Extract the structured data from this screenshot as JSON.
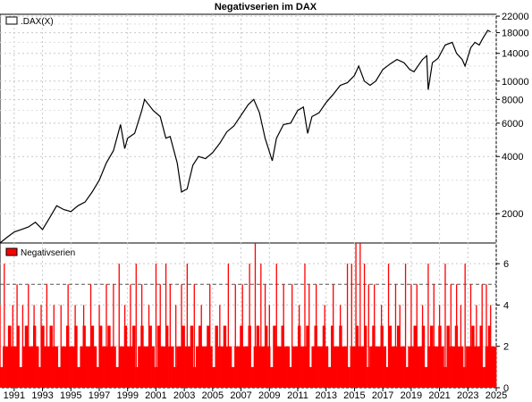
{
  "chart_data": [
    {
      "type": "line",
      "title": "Negativserien im DAX",
      "legend": ".DAX(X)",
      "legend_position": "top-left",
      "y_scale": "log",
      "ylim": [
        1400,
        22500
      ],
      "xlim": [
        1990.0,
        2025.0
      ],
      "y_ticks": [
        "2000",
        "4000",
        "6000",
        "8000",
        "10000",
        "14000",
        "18000",
        "22000"
      ],
      "grid": true,
      "series": [
        {
          "name": ".DAX(X)",
          "x": [
            1990.0,
            1990.5,
            1991.0,
            1991.5,
            1992.0,
            1992.5,
            1993.0,
            1993.5,
            1994.0,
            1994.5,
            1995.0,
            1995.5,
            1996.0,
            1996.5,
            1997.0,
            1997.5,
            1998.0,
            1998.5,
            1998.8,
            1999.0,
            1999.5,
            2000.0,
            2000.2,
            2000.8,
            2001.3,
            2001.7,
            2002.0,
            2002.5,
            2002.8,
            2003.2,
            2003.6,
            2004.0,
            2004.5,
            2005.0,
            2005.5,
            2006.0,
            2006.5,
            2007.0,
            2007.5,
            2007.9,
            2008.3,
            2008.7,
            2009.2,
            2009.5,
            2010.0,
            2010.5,
            2011.0,
            2011.4,
            2011.7,
            2012.0,
            2012.5,
            2013.0,
            2013.5,
            2014.0,
            2014.5,
            2015.0,
            2015.3,
            2015.7,
            2016.1,
            2016.5,
            2017.0,
            2017.5,
            2018.0,
            2018.5,
            2018.9,
            2019.2,
            2019.8,
            2020.1,
            2020.2,
            2020.5,
            2020.9,
            2021.4,
            2021.9,
            2022.2,
            2022.6,
            2022.8,
            2023.2,
            2023.5,
            2023.8,
            2024.0,
            2024.2,
            2024.4,
            2024.6
          ],
          "values": [
            1400,
            1500,
            1600,
            1650,
            1700,
            1800,
            1650,
            1900,
            2200,
            2100,
            2050,
            2200,
            2300,
            2600,
            3000,
            3700,
            4300,
            5900,
            4400,
            5000,
            5300,
            7000,
            8000,
            7000,
            6500,
            5000,
            5100,
            3700,
            2600,
            2700,
            3600,
            4000,
            3900,
            4200,
            4700,
            5400,
            5800,
            6600,
            7500,
            8000,
            6800,
            5000,
            3800,
            5000,
            5900,
            6000,
            7000,
            7300,
            5300,
            6500,
            6800,
            7700,
            8500,
            9500,
            9800,
            10700,
            12000,
            10000,
            9500,
            10000,
            11500,
            12300,
            13000,
            12500,
            11500,
            11200,
            13000,
            13600,
            9000,
            12500,
            13200,
            15500,
            16000,
            14000,
            13000,
            12000,
            15000,
            16000,
            15500,
            16500,
            17500,
            18500,
            18200
          ]
        }
      ]
    },
    {
      "type": "bar",
      "legend": "Negativserien",
      "legend_position": "top-left",
      "ylim": [
        0,
        7
      ],
      "y_ticks": [
        "0",
        "2",
        "4",
        "6"
      ],
      "x_ticks": [
        "1991",
        "1993",
        "1995",
        "1997",
        "1999",
        "2001",
        "2003",
        "2005",
        "2007",
        "2009",
        "2011",
        "2013",
        "2015",
        "2017",
        "2019",
        "2021",
        "2023",
        "2025"
      ],
      "reference_line": 5,
      "grid": true,
      "series": [
        {
          "name": "Negativserien",
          "color": "#ff0000",
          "x": [
            1990.0,
            1990.3,
            1990.6,
            1990.9,
            1991.2,
            1991.6,
            1992.0,
            1992.4,
            1992.9,
            1993.3,
            1993.8,
            1994.3,
            1994.8,
            1995.3,
            1995.9,
            1996.4,
            1997.0,
            1997.5,
            1998.0,
            1998.4,
            1998.8,
            1999.2,
            1999.6,
            2000.0,
            2000.5,
            2001.0,
            2001.3,
            2001.7,
            2002.0,
            2002.4,
            2002.8,
            2003.2,
            2003.7,
            2004.2,
            2004.8,
            2005.5,
            2006.1,
            2006.6,
            2007.1,
            2007.6,
            2008.0,
            2008.4,
            2008.7,
            2009.0,
            2009.5,
            2010.0,
            2010.6,
            2011.1,
            2011.5,
            2011.8,
            2012.3,
            2012.9,
            2013.5,
            2014.0,
            2014.5,
            2014.8,
            2015.1,
            2015.4,
            2015.7,
            2016.0,
            2016.4,
            2016.9,
            2017.4,
            2017.9,
            2018.2,
            2018.6,
            2019.0,
            2019.4,
            2019.8,
            2020.2,
            2020.6,
            2021.0,
            2021.4,
            2021.8,
            2022.2,
            2022.5,
            2022.8,
            2023.2,
            2023.6,
            2024.0,
            2024.3,
            2024.6
          ],
          "values": [
            4,
            6,
            3,
            4,
            5,
            4,
            5,
            4,
            4,
            5,
            4,
            4,
            5,
            4,
            4,
            5,
            4,
            5,
            5,
            6,
            4,
            5,
            6,
            5,
            4,
            6,
            5,
            6,
            5,
            4,
            5,
            6,
            5,
            4,
            5,
            4,
            6,
            5,
            5,
            6,
            7,
            6,
            5,
            4,
            6,
            5,
            5,
            4,
            6,
            5,
            5,
            4,
            5,
            4,
            6,
            6,
            7,
            7,
            6,
            5,
            5,
            4,
            6,
            5,
            4,
            6,
            5,
            5,
            4,
            6,
            5,
            4,
            6,
            5,
            5,
            4,
            6,
            5,
            4,
            5,
            5,
            4
          ]
        }
      ]
    }
  ]
}
